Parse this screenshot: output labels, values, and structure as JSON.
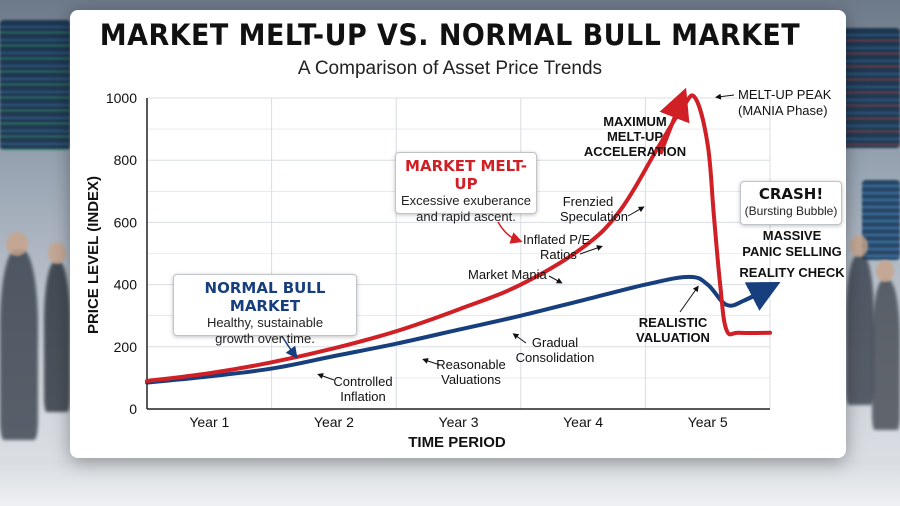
{
  "title": "MARKET MELT-UP VS. NORMAL BULL MARKET",
  "subtitle": "A Comparison of Asset Price Trends",
  "colors": {
    "meltup": "#d11f26",
    "bull": "#173e7d",
    "grid": "#d9dde2"
  },
  "chart_data": {
    "type": "line",
    "xlabel": "TIME PERIOD",
    "ylabel": "PRICE LEVEL (INDEX)",
    "ylim": [
      0,
      1000
    ],
    "xlim": [
      0.5,
      5.5
    ],
    "yticks": [
      "0",
      "200",
      "400",
      "600",
      "800",
      "1000"
    ],
    "xticks": [
      "Year 1",
      "Year 2",
      "Year 3",
      "Year 4",
      "Year 5"
    ],
    "grid": true,
    "series": [
      {
        "name": "MARKET MELT-UP",
        "x": [
          0.5,
          1.0,
          1.5,
          2.0,
          2.5,
          3.0,
          3.5,
          4.0,
          4.3,
          4.6,
          4.8,
          4.9,
          5.0,
          5.05,
          5.1,
          5.15,
          5.25,
          5.5
        ],
        "y": [
          90,
          115,
          150,
          195,
          250,
          320,
          400,
          520,
          640,
          840,
          970,
          1000,
          850,
          620,
          400,
          255,
          245,
          245
        ]
      },
      {
        "name": "NORMAL BULL MARKET",
        "x": [
          0.5,
          1.0,
          1.5,
          2.0,
          2.5,
          3.0,
          3.5,
          4.0,
          4.5,
          4.85,
          5.0,
          5.15,
          5.3,
          5.5
        ],
        "y": [
          85,
          105,
          130,
          170,
          210,
          255,
          300,
          350,
          400,
          425,
          400,
          335,
          350,
          390
        ]
      }
    ],
    "annotations": {
      "peak": [
        "MELT-UP PEAK",
        "(MANIA Phase)"
      ],
      "accel": [
        "MAXIMUM",
        "MELT-UP",
        "ACCELERATION"
      ],
      "frenzied": [
        "Frenzied",
        "Speculation"
      ],
      "inflated": [
        "Inflated P/E",
        "Ratios"
      ],
      "mania": "Market Mania",
      "gradual": [
        "Gradual",
        "Consolidation"
      ],
      "reasonable": [
        "Reasonable",
        "Valuations"
      ],
      "controlled": [
        "Controlled",
        "Inflation"
      ],
      "realistic": [
        "REALISTIC",
        "VALUATION"
      ],
      "panic": [
        "MASSIVE",
        "PANIC SELLING"
      ],
      "reality": "REALITY CHECK"
    }
  },
  "boxes": {
    "meltup": {
      "head": "MARKET MELT-UP",
      "line1": "Excessive exuberance",
      "line2": "and rapid ascent."
    },
    "bull": {
      "head": "NORMAL BULL MARKET",
      "line1": "Healthy, sustainable",
      "line2": "growth over time."
    },
    "crash": {
      "head": "CRASH!",
      "line1": "(Bursting Bubble)"
    }
  }
}
